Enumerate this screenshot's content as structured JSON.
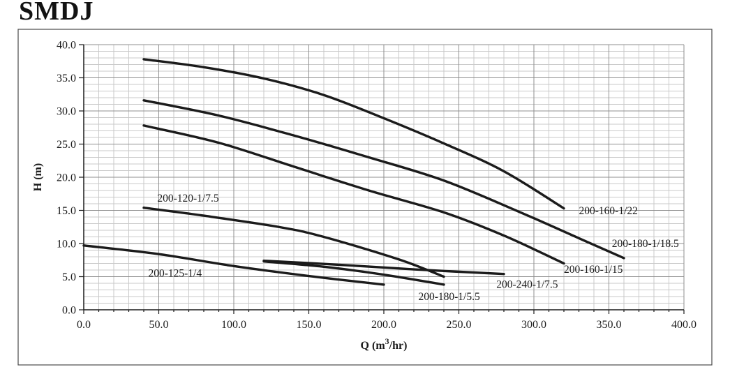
{
  "title": "SMDJ",
  "chart_data": {
    "type": "line",
    "title": "SMDJ",
    "xlabel_parts": {
      "pre": "Q (m",
      "sup": "3",
      "post": "/hr)"
    },
    "ylabel": "H (m)",
    "xlim": [
      0,
      400
    ],
    "ylim": [
      0,
      40
    ],
    "x_major": 50,
    "x_minor": 10,
    "y_major": 5,
    "y_minor": 1,
    "tick_decimals": 1,
    "grid": true,
    "legend_position": "inline-curve-labels",
    "series": [
      {
        "name": "200-160-1/22",
        "points": [
          [
            40,
            37.8
          ],
          [
            80,
            36.6
          ],
          [
            120,
            34.9
          ],
          [
            160,
            32.4
          ],
          [
            200,
            28.9
          ],
          [
            240,
            25.1
          ],
          [
            280,
            20.9
          ],
          [
            320,
            15.3
          ]
        ],
        "label_at": [
          330,
          14.4
        ]
      },
      {
        "name": "200-180-1/18.5",
        "points": [
          [
            40,
            31.6
          ],
          [
            90,
            29.3
          ],
          [
            140,
            26.3
          ],
          [
            190,
            23.0
          ],
          [
            240,
            19.5
          ],
          [
            290,
            14.8
          ],
          [
            330,
            10.8
          ],
          [
            360,
            7.8
          ]
        ],
        "label_at": [
          352,
          9.5
        ]
      },
      {
        "name": "200-160-1/15",
        "points": [
          [
            40,
            27.8
          ],
          [
            90,
            25.2
          ],
          [
            140,
            21.6
          ],
          [
            190,
            18.0
          ],
          [
            240,
            14.7
          ],
          [
            280,
            11.2
          ],
          [
            320,
            7.0
          ]
        ],
        "label_at": [
          320,
          5.6
        ]
      },
      {
        "name": "200-120-1/7.5",
        "points": [
          [
            40,
            15.4
          ],
          [
            80,
            14.2
          ],
          [
            130,
            12.5
          ],
          [
            160,
            11.0
          ],
          [
            210,
            7.6
          ],
          [
            240,
            5.0
          ]
        ],
        "label_at": [
          49,
          16.3
        ]
      },
      {
        "name": "200-125-1/4",
        "points": [
          [
            0,
            9.7
          ],
          [
            50,
            8.4
          ],
          [
            100,
            6.6
          ],
          [
            150,
            5.1
          ],
          [
            200,
            3.8
          ]
        ],
        "label_at": [
          43,
          5.0
        ]
      },
      {
        "name": "200-240-1/7.5",
        "points": [
          [
            120,
            7.4
          ],
          [
            170,
            6.8
          ],
          [
            220,
            6.1
          ],
          [
            280,
            5.4
          ]
        ],
        "label_at": [
          275,
          3.3
        ]
      },
      {
        "name": "200-180-1/5.5",
        "points": [
          [
            120,
            7.3
          ],
          [
            160,
            6.5
          ],
          [
            200,
            5.3
          ],
          [
            240,
            3.8
          ]
        ],
        "label_at": [
          223,
          1.5
        ]
      }
    ],
    "colors": {
      "curve": "#1b1b1b",
      "grid_minor": "#c9c9c9",
      "grid_major": "#8f8f8f",
      "axis": "#1b1b1b",
      "frame": "#4a4a4a",
      "background": "#ffffff",
      "text": "#1b1b1b"
    }
  }
}
